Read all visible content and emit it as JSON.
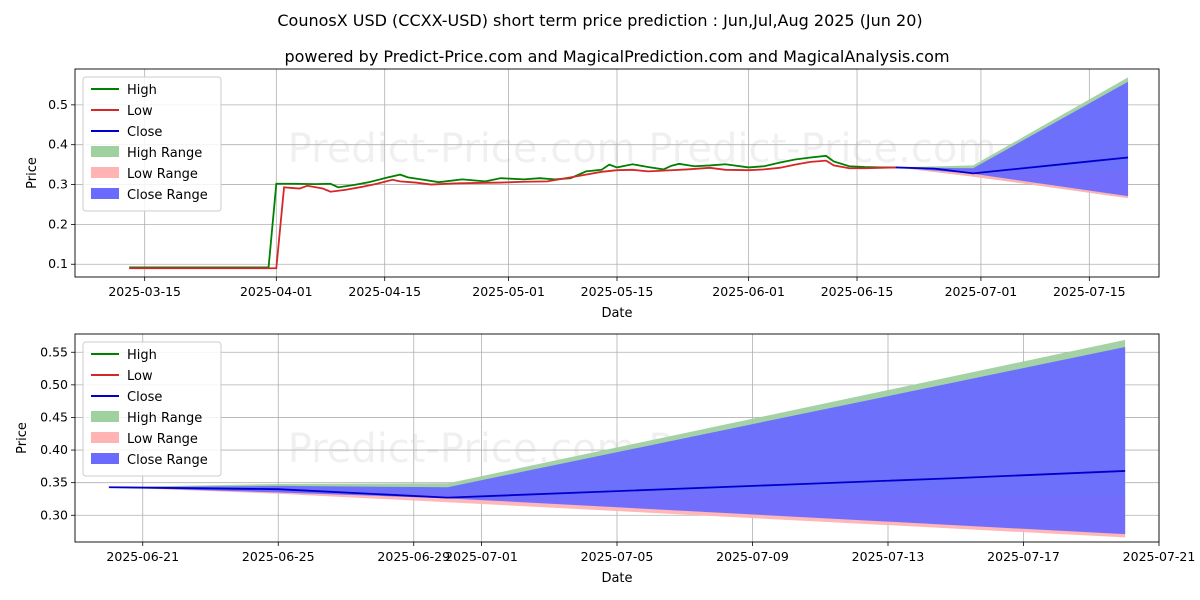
{
  "title": "CounosX USD (CCXX-USD) short term price prediction : Jun,Jul,Aug 2025 (Jun 20)",
  "subtitle": "powered by Predict-Price.com and MagicalPrediction.com and MagicalAnalysis.com",
  "watermark": "Predict-Price.com   Predict-Price.com",
  "colors": {
    "high": "#008000",
    "low": "#d62728",
    "close": "#0000cc",
    "high_range": "#9fd09f",
    "low_range": "#ffb3b3",
    "close_range": "#6a6aff"
  },
  "chart_data": [
    {
      "type": "line",
      "xlabel": "Date",
      "ylabel": "Price",
      "xlim": [
        "2025-03-06",
        "2025-07-24"
      ],
      "ylim": [
        0.068,
        0.59
      ],
      "xticks": [
        {
          "date": "2025-03-15",
          "label": "2025-03-15"
        },
        {
          "date": "2025-04-01",
          "label": "2025-04-01"
        },
        {
          "date": "2025-04-15",
          "label": "2025-04-15"
        },
        {
          "date": "2025-05-01",
          "label": "2025-05-01"
        },
        {
          "date": "2025-05-15",
          "label": "2025-05-15"
        },
        {
          "date": "2025-06-01",
          "label": "2025-06-01"
        },
        {
          "date": "2025-06-15",
          "label": "2025-06-15"
        },
        {
          "date": "2025-07-01",
          "label": "2025-07-01"
        },
        {
          "date": "2025-07-15",
          "label": "2025-07-15"
        }
      ],
      "yticks": [
        {
          "value": 0.1,
          "label": "0.1"
        },
        {
          "value": 0.2,
          "label": "0.2"
        },
        {
          "value": 0.3,
          "label": "0.3"
        },
        {
          "value": 0.4,
          "label": "0.4"
        },
        {
          "value": 0.5,
          "label": "0.5"
        }
      ],
      "legend": [
        "High",
        "Low",
        "Close",
        "High Range",
        "Low Range",
        "Close Range"
      ],
      "legend_location": "top-left",
      "grid": true,
      "series": [
        {
          "name": "High",
          "points": [
            [
              "2025-03-13",
              0.092
            ],
            [
              "2025-03-31",
              0.092
            ],
            [
              "2025-04-01",
              0.302
            ],
            [
              "2025-04-03",
              0.302
            ],
            [
              "2025-04-06",
              0.301
            ],
            [
              "2025-04-08",
              0.302
            ],
            [
              "2025-04-09",
              0.293
            ],
            [
              "2025-04-11",
              0.299
            ],
            [
              "2025-04-13",
              0.306
            ],
            [
              "2025-04-15",
              0.316
            ],
            [
              "2025-04-17",
              0.325
            ],
            [
              "2025-04-18",
              0.318
            ],
            [
              "2025-04-20",
              0.312
            ],
            [
              "2025-04-22",
              0.306
            ],
            [
              "2025-04-25",
              0.313
            ],
            [
              "2025-04-28",
              0.308
            ],
            [
              "2025-04-30",
              0.316
            ],
            [
              "2025-05-03",
              0.313
            ],
            [
              "2025-05-05",
              0.316
            ],
            [
              "2025-05-07",
              0.313
            ],
            [
              "2025-05-09",
              0.316
            ],
            [
              "2025-05-11",
              0.333
            ],
            [
              "2025-05-13",
              0.337
            ],
            [
              "2025-05-14",
              0.35
            ],
            [
              "2025-05-15",
              0.343
            ],
            [
              "2025-05-17",
              0.351
            ],
            [
              "2025-05-19",
              0.344
            ],
            [
              "2025-05-21",
              0.338
            ],
            [
              "2025-05-22",
              0.347
            ],
            [
              "2025-05-23",
              0.352
            ],
            [
              "2025-05-25",
              0.346
            ],
            [
              "2025-05-27",
              0.348
            ],
            [
              "2025-05-29",
              0.351
            ],
            [
              "2025-06-01",
              0.343
            ],
            [
              "2025-06-03",
              0.346
            ],
            [
              "2025-06-05",
              0.355
            ],
            [
              "2025-06-07",
              0.363
            ],
            [
              "2025-06-09",
              0.368
            ],
            [
              "2025-06-11",
              0.372
            ],
            [
              "2025-06-12",
              0.358
            ],
            [
              "2025-06-14",
              0.346
            ],
            [
              "2025-06-16",
              0.344
            ],
            [
              "2025-06-18",
              0.343
            ],
            [
              "2025-06-20",
              0.343
            ]
          ]
        },
        {
          "name": "Low",
          "points": [
            [
              "2025-03-13",
              0.09
            ],
            [
              "2025-04-01",
              0.09
            ],
            [
              "2025-04-02",
              0.293
            ],
            [
              "2025-04-04",
              0.29
            ],
            [
              "2025-04-05",
              0.297
            ],
            [
              "2025-04-07",
              0.29
            ],
            [
              "2025-04-08",
              0.282
            ],
            [
              "2025-04-10",
              0.287
            ],
            [
              "2025-04-12",
              0.294
            ],
            [
              "2025-04-14",
              0.302
            ],
            [
              "2025-04-16",
              0.312
            ],
            [
              "2025-04-17",
              0.308
            ],
            [
              "2025-04-19",
              0.305
            ],
            [
              "2025-04-21",
              0.3
            ],
            [
              "2025-04-24",
              0.303
            ],
            [
              "2025-04-27",
              0.304
            ],
            [
              "2025-04-30",
              0.305
            ],
            [
              "2025-05-03",
              0.307
            ],
            [
              "2025-05-06",
              0.308
            ],
            [
              "2025-05-09",
              0.318
            ],
            [
              "2025-05-11",
              0.325
            ],
            [
              "2025-05-13",
              0.332
            ],
            [
              "2025-05-15",
              0.336
            ],
            [
              "2025-05-17",
              0.337
            ],
            [
              "2025-05-19",
              0.333
            ],
            [
              "2025-05-21",
              0.335
            ],
            [
              "2025-05-24",
              0.338
            ],
            [
              "2025-05-27",
              0.342
            ],
            [
              "2025-05-29",
              0.337
            ],
            [
              "2025-06-01",
              0.336
            ],
            [
              "2025-06-03",
              0.338
            ],
            [
              "2025-06-05",
              0.342
            ],
            [
              "2025-06-07",
              0.35
            ],
            [
              "2025-06-09",
              0.357
            ],
            [
              "2025-06-11",
              0.36
            ],
            [
              "2025-06-12",
              0.348
            ],
            [
              "2025-06-14",
              0.341
            ],
            [
              "2025-06-16",
              0.341
            ],
            [
              "2025-06-18",
              0.342
            ],
            [
              "2025-06-20",
              0.343
            ]
          ]
        },
        {
          "name": "Close",
          "points": [
            [
              "2025-06-20",
              0.343
            ],
            [
              "2025-06-25",
              0.34
            ],
            [
              "2025-06-30",
              0.328
            ],
            [
              "2025-07-05",
              0.338
            ],
            [
              "2025-07-10",
              0.348
            ],
            [
              "2025-07-15",
              0.358
            ],
            [
              "2025-07-20",
              0.368
            ]
          ]
        },
        {
          "name": "High Range",
          "band": [
            [
              "2025-06-20",
              0.343,
              0.343
            ],
            [
              "2025-06-30",
              0.32,
              0.348
            ],
            [
              "2025-07-20",
              0.266,
              0.569
            ]
          ]
        },
        {
          "name": "Low Range",
          "band": [
            [
              "2025-06-20",
              0.343,
              0.343
            ],
            [
              "2025-06-30",
              0.32,
              0.34
            ],
            [
              "2025-07-20",
              0.266,
              0.33
            ]
          ]
        },
        {
          "name": "Close Range",
          "band": [
            [
              "2025-06-20",
              0.343,
              0.343
            ],
            [
              "2025-06-30",
              0.327,
              0.341
            ],
            [
              "2025-07-20",
              0.271,
              0.558
            ]
          ]
        }
      ]
    },
    {
      "type": "line",
      "xlabel": "Date",
      "ylabel": "Price",
      "xlim": [
        "2025-06-19",
        "2025-07-21"
      ],
      "ylim": [
        0.259,
        0.578
      ],
      "xticks": [
        {
          "date": "2025-06-21",
          "label": "2025-06-21"
        },
        {
          "date": "2025-06-25",
          "label": "2025-06-25"
        },
        {
          "date": "2025-06-29",
          "label": "2025-06-29"
        },
        {
          "date": "2025-07-01",
          "label": "2025-07-01"
        },
        {
          "date": "2025-07-05",
          "label": "2025-07-05"
        },
        {
          "date": "2025-07-09",
          "label": "2025-07-09"
        },
        {
          "date": "2025-07-13",
          "label": "2025-07-13"
        },
        {
          "date": "2025-07-17",
          "label": "2025-07-17"
        },
        {
          "date": "2025-07-21",
          "label": "2025-07-21"
        }
      ],
      "yticks": [
        {
          "value": 0.3,
          "label": "0.30"
        },
        {
          "value": 0.35,
          "label": "0.35"
        },
        {
          "value": 0.4,
          "label": "0.40"
        },
        {
          "value": 0.45,
          "label": "0.45"
        },
        {
          "value": 0.5,
          "label": "0.50"
        },
        {
          "value": 0.55,
          "label": "0.55"
        }
      ],
      "legend": [
        "High",
        "Low",
        "Close",
        "High Range",
        "Low Range",
        "Close Range"
      ],
      "legend_location": "top-left",
      "grid": true,
      "series": [
        {
          "name": "Close",
          "points": [
            [
              "2025-06-20",
              0.343
            ],
            [
              "2025-06-25",
              0.34
            ],
            [
              "2025-06-30",
              0.327
            ],
            [
              "2025-07-05",
              0.337
            ],
            [
              "2025-07-10",
              0.347
            ],
            [
              "2025-07-15",
              0.357
            ],
            [
              "2025-07-20",
              0.368
            ]
          ]
        },
        {
          "name": "High Range",
          "band": [
            [
              "2025-06-20",
              0.343,
              0.343
            ],
            [
              "2025-06-25",
              0.335,
              0.348
            ],
            [
              "2025-06-30",
              0.328,
              0.349
            ],
            [
              "2025-07-20",
              0.27,
              0.569
            ]
          ]
        },
        {
          "name": "Low Range",
          "band": [
            [
              "2025-06-20",
              0.343,
              0.343
            ],
            [
              "2025-06-25",
              0.333,
              0.342
            ],
            [
              "2025-06-30",
              0.32,
              0.334
            ],
            [
              "2025-07-20",
              0.266,
              0.33
            ]
          ]
        },
        {
          "name": "Close Range",
          "band": [
            [
              "2025-06-20",
              0.343,
              0.343
            ],
            [
              "2025-06-25",
              0.335,
              0.345
            ],
            [
              "2025-06-30",
              0.326,
              0.343
            ],
            [
              "2025-07-20",
              0.271,
              0.558
            ]
          ]
        }
      ]
    }
  ]
}
